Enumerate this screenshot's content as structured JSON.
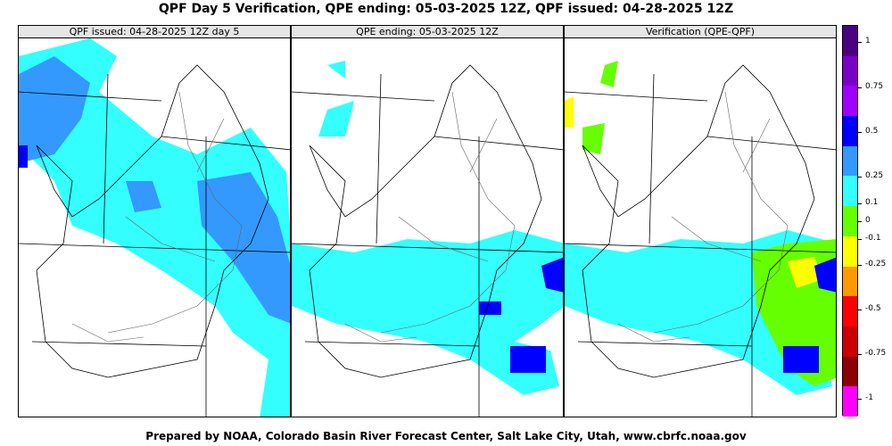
{
  "title": "QPF Day 5 Verification, QPE ending: 05-03-2025 12Z, QPF issued: 04-28-2025 12Z",
  "panels": [
    {
      "label": "QPF issued: 04-28-2025 12Z day 5"
    },
    {
      "label": "QPE ending: 05-03-2025 12Z"
    },
    {
      "label": "Verification (QPE-QPF)"
    }
  ],
  "legend": {
    "labels": [
      "1",
      "0.75",
      "0.5",
      "0.25",
      "0.1",
      "0",
      "-0.1",
      "-0.25",
      "-0.5",
      "-0.75",
      "-1"
    ],
    "colors": [
      "#4b0082",
      "#7a00c8",
      "#a000ff",
      "#0000ff",
      "#3399ff",
      "#33ffff",
      "#66ff00",
      "#ffff00",
      "#ff9900",
      "#ff0000",
      "#cc0000",
      "#8b0000",
      "#ff00ff"
    ]
  },
  "colors": {
    "light_blue": "#33ffff",
    "mid_blue": "#3399ff",
    "dark_blue": "#0000ff",
    "green": "#66ff00",
    "yellow": "#ffff00",
    "purple": "#4b0082"
  },
  "footer": "Prepared by NOAA, Colorado Basin River Forecast Center, Salt Lake City, Utah, www.cbrfc.noaa.gov"
}
